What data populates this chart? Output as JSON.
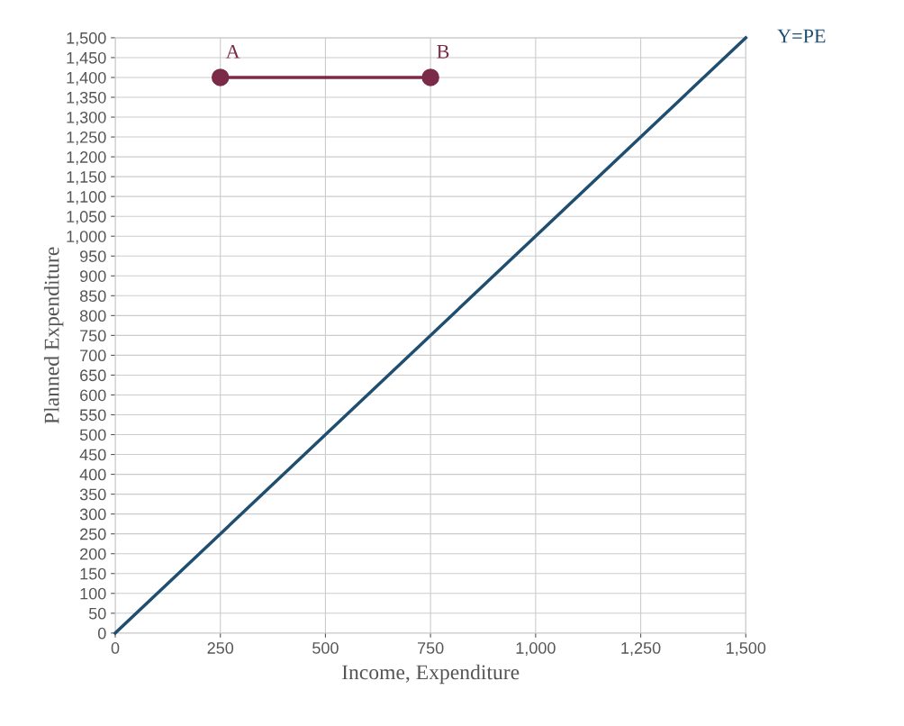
{
  "chart_data": {
    "type": "line",
    "xlabel": "Income, Expenditure",
    "ylabel": "Planned Expenditure",
    "series": [
      {
        "name": "Y=PE",
        "color": "#1f4e70",
        "x": [
          0,
          1500
        ],
        "values": [
          0,
          1500
        ],
        "marker": "none"
      },
      {
        "color": "#7b2a48",
        "x": [
          250,
          750
        ],
        "values": [
          1400,
          1400
        ],
        "marker": "circle"
      }
    ],
    "annotations": [
      {
        "text": "A",
        "x": 250,
        "y": 1400
      },
      {
        "text": "B",
        "x": 750,
        "y": 1400
      }
    ],
    "xlim": [
      0,
      1500
    ],
    "ylim": [
      0,
      1500
    ],
    "xticks": [
      0,
      250,
      500,
      750,
      {
        "value": 1000,
        "label": "1,000"
      },
      {
        "value": 1250,
        "label": "1,250"
      },
      {
        "value": 1500,
        "label": "1,500"
      }
    ],
    "yticks": [
      0,
      50,
      100,
      150,
      200,
      250,
      300,
      350,
      400,
      450,
      500,
      550,
      600,
      650,
      700,
      750,
      800,
      850,
      900,
      950,
      {
        "value": 1000,
        "label": "1,000"
      },
      {
        "value": 1050,
        "label": "1,050"
      },
      {
        "value": 1100,
        "label": "1,100"
      },
      {
        "value": 1150,
        "label": "1,150"
      },
      {
        "value": 1200,
        "label": "1,200"
      },
      {
        "value": 1250,
        "label": "1,250"
      },
      {
        "value": 1300,
        "label": "1,300"
      },
      {
        "value": 1350,
        "label": "1,350"
      },
      {
        "value": 1400,
        "label": "1,400"
      },
      {
        "value": 1450,
        "label": "1,450"
      },
      {
        "value": 1500,
        "label": "1,500"
      }
    ],
    "grid": true,
    "legend": false
  }
}
